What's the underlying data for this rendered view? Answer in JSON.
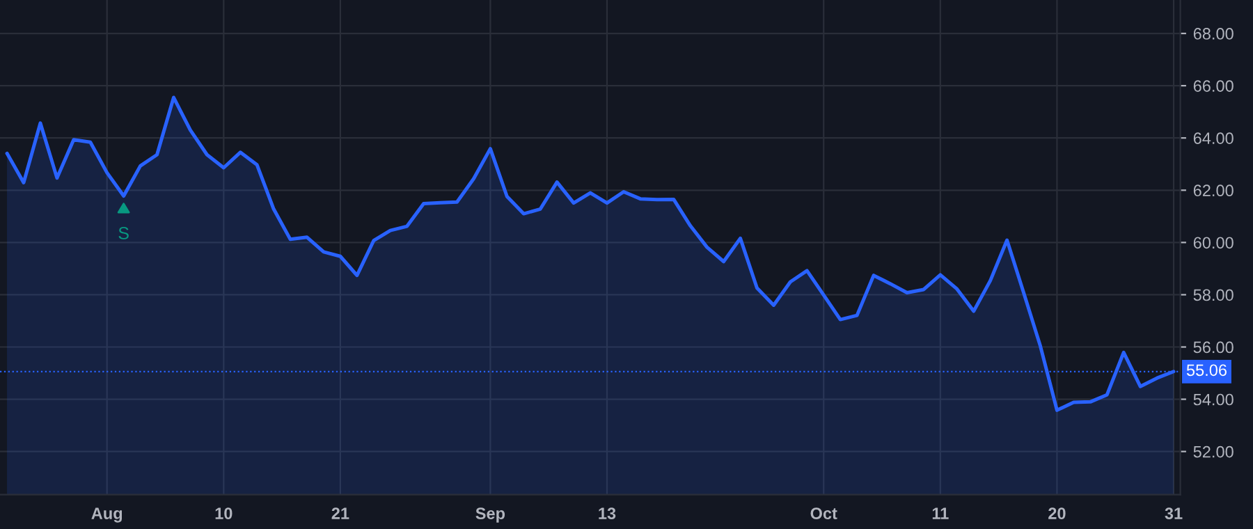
{
  "chart_data": {
    "type": "area",
    "categories": [
      null,
      null,
      null,
      null,
      null,
      null,
      "Aug",
      null,
      null,
      null,
      null,
      null,
      null,
      "10",
      null,
      null,
      null,
      null,
      null,
      null,
      "21",
      null,
      null,
      null,
      null,
      null,
      null,
      null,
      null,
      "Sep",
      null,
      null,
      null,
      null,
      null,
      null,
      "13",
      null,
      null,
      null,
      null,
      null,
      null,
      null,
      null,
      null,
      null,
      null,
      null,
      "Oct",
      null,
      null,
      null,
      null,
      null,
      null,
      "11",
      null,
      null,
      null,
      null,
      null,
      null,
      "20",
      null,
      null,
      null,
      null,
      null,
      null,
      "31"
    ],
    "series": [
      {
        "color": "#2962ff",
        "values": [
          63.41,
          62.29,
          64.57,
          62.47,
          63.93,
          63.84,
          62.67,
          61.78,
          62.93,
          63.36,
          65.55,
          64.3,
          63.36,
          62.86,
          63.45,
          62.97,
          61.28,
          60.12,
          60.2,
          59.64,
          59.47,
          58.74,
          60.07,
          60.46,
          60.62,
          61.49,
          61.52,
          61.55,
          62.44,
          63.59,
          61.76,
          61.1,
          61.28,
          62.31,
          61.51,
          61.9,
          61.51,
          61.94,
          61.67,
          61.64,
          61.65,
          60.64,
          59.82,
          59.27,
          60.16,
          58.26,
          57.6,
          58.49,
          58.92,
          57.99,
          57.05,
          57.21,
          58.74,
          58.42,
          58.08,
          58.2,
          58.76,
          58.22,
          57.37,
          58.54,
          60.09,
          58.08,
          56.04,
          53.58,
          53.88,
          53.9,
          54.17,
          55.79,
          54.49,
          54.81,
          55.06
        ]
      }
    ],
    "ylim": [
      50.35,
      69.28
    ],
    "yticks": [
      {
        "value": 52,
        "label": "52.00"
      },
      {
        "value": 54,
        "label": "54.00"
      },
      {
        "value": 56,
        "label": "56.00"
      },
      {
        "value": 58,
        "label": "58.00"
      },
      {
        "value": 60,
        "label": "60.00"
      },
      {
        "value": 62,
        "label": "62.00"
      },
      {
        "value": 64,
        "label": "64.00"
      },
      {
        "value": 66,
        "label": "66.00"
      },
      {
        "value": 68,
        "label": "68.00"
      }
    ],
    "grid": true,
    "line_style": "solid",
    "ref_lines": [
      {
        "axis": "y",
        "value": 55.06,
        "label": "55.06",
        "color": "#2962ff",
        "line_style": "dotted"
      }
    ],
    "annotations": [
      {
        "text": "S",
        "y": 61.78
      }
    ]
  }
}
